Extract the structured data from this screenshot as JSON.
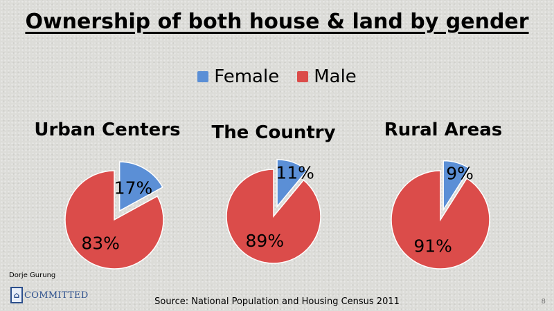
{
  "title": "Ownership of both house & land by gender",
  "author": "Dorje Gurung",
  "logo_text": "COMMITTED",
  "source": "Source: National Population and Housing Census 2011",
  "page_number": "8",
  "colors": {
    "female": "#5b8fd6",
    "male": "#db4c4a",
    "slice_edge": "#ffffff"
  },
  "chart_data": [
    {
      "type": "pie",
      "title": "Urban Centers",
      "categories": [
        "Female",
        "Male"
      ],
      "values": [
        17,
        83
      ],
      "labels": [
        "17%",
        "83%"
      ],
      "legend": "top-center",
      "exploded": "Female"
    },
    {
      "type": "pie",
      "title": "The Country",
      "categories": [
        "Female",
        "Male"
      ],
      "values": [
        11,
        89
      ],
      "labels": [
        "11%",
        "89%"
      ],
      "legend": "top-center",
      "exploded": "Female"
    },
    {
      "type": "pie",
      "title": "Rural Areas",
      "categories": [
        "Female",
        "Male"
      ],
      "values": [
        9,
        91
      ],
      "labels": [
        "9%",
        "91%"
      ],
      "legend": "top-center",
      "exploded": "Female"
    }
  ]
}
